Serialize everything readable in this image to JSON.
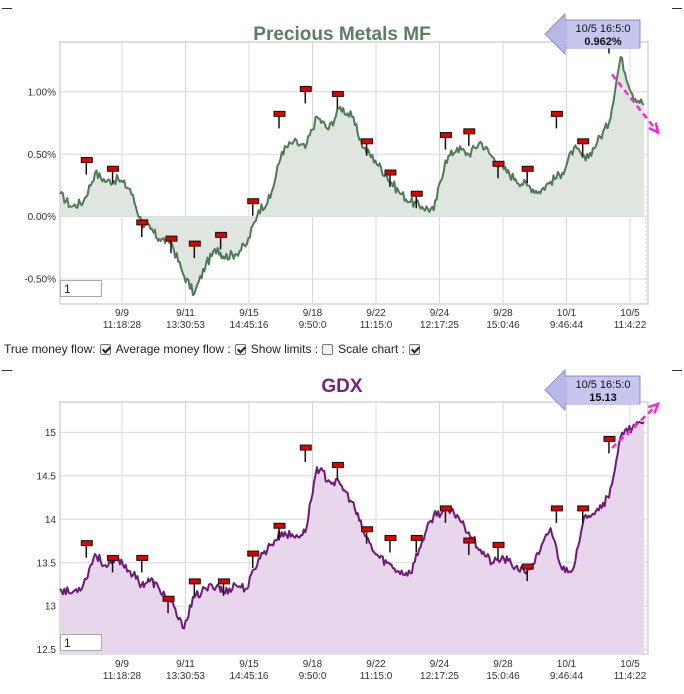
{
  "options": {
    "true_money_flow": "True money flow:",
    "average_money_flow": "Average money flow :",
    "show_limits": "Show limits :",
    "scale_chart": "Scale chart :",
    "true_money_flow_checked": true,
    "average_money_flow_checked": true,
    "show_limits_checked": false,
    "scale_chart_checked": true
  },
  "chart_data": [
    {
      "type": "area",
      "title": "Precious Metals MF",
      "title_color": "#5a7f5f",
      "line_color": "#4f7a55",
      "fill_color": "#dfe5df",
      "ylim": [
        -0.7,
        1.4
      ],
      "yticks": [
        -0.5,
        0.0,
        0.5,
        1.0
      ],
      "ytick_labels": [
        "-0.50%",
        "0.00%",
        "0.50%",
        "1.00%"
      ],
      "xtick_labels": [
        [
          "9/9",
          "11:18:28"
        ],
        [
          "9/11",
          "13:30:53"
        ],
        [
          "9/15",
          "14:45:16"
        ],
        [
          "9/18",
          "9:50:0"
        ],
        [
          "9/22",
          "11:15:0"
        ],
        [
          "9/24",
          "12:17:25"
        ],
        [
          "9/28",
          "15:0:46"
        ],
        [
          "10/1",
          "9:46:44"
        ],
        [
          "10/5",
          "11:4:22"
        ]
      ],
      "x": [
        0,
        2,
        4,
        6,
        8,
        10,
        12,
        14,
        15.5,
        17,
        19,
        21,
        23,
        25,
        27,
        28,
        30,
        32,
        34,
        36,
        38,
        40,
        42,
        44,
        46,
        48,
        50,
        52,
        54,
        56,
        58,
        60,
        62,
        64,
        66,
        68,
        70,
        72,
        74,
        76,
        78,
        80,
        82,
        84,
        86,
        88,
        90,
        92,
        94,
        96,
        98,
        100
      ],
      "values": [
        0.18,
        0.08,
        0.12,
        0.35,
        0.28,
        0.3,
        0.22,
        -0.05,
        -0.1,
        -0.18,
        -0.2,
        -0.45,
        -0.62,
        -0.38,
        -0.25,
        -0.32,
        -0.3,
        -0.22,
        0.05,
        0.15,
        0.52,
        0.6,
        0.55,
        0.8,
        0.7,
        0.88,
        0.8,
        0.55,
        0.45,
        0.32,
        0.2,
        0.12,
        0.08,
        0.05,
        0.45,
        0.55,
        0.5,
        0.6,
        0.48,
        0.38,
        0.3,
        0.25,
        0.2,
        0.28,
        0.35,
        0.55,
        0.45,
        0.6,
        0.75,
        1.28,
        0.98,
        0.9
      ],
      "markers": [
        {
          "x": 4.5,
          "value": 0.45
        },
        {
          "x": 9,
          "value": 0.38
        },
        {
          "x": 14,
          "value": -0.05
        },
        {
          "x": 19,
          "value": -0.18
        },
        {
          "x": 23,
          "value": -0.22
        },
        {
          "x": 27.5,
          "value": -0.15
        },
        {
          "x": 33,
          "value": 0.12
        },
        {
          "x": 37.5,
          "value": 0.82
        },
        {
          "x": 42,
          "value": 1.02
        },
        {
          "x": 47.5,
          "value": 0.98
        },
        {
          "x": 52.5,
          "value": 0.6
        },
        {
          "x": 56.5,
          "value": 0.35
        },
        {
          "x": 61,
          "value": 0.18
        },
        {
          "x": 66,
          "value": 0.65
        },
        {
          "x": 70,
          "value": 0.68
        },
        {
          "x": 75,
          "value": 0.42
        },
        {
          "x": 80,
          "value": 0.38
        },
        {
          "x": 85,
          "value": 0.82
        },
        {
          "x": 89.5,
          "value": 0.6
        },
        {
          "x": 94,
          "value": 1.42
        }
      ],
      "badge": {
        "time": "10/5 16:5:0",
        "value": "0.962%"
      },
      "input_value": "1"
    },
    {
      "type": "area",
      "title": "GDX",
      "title_color": "#7a1f7a",
      "line_color": "#6e1a77",
      "fill_color": "#e8d7ec",
      "ylim": [
        12.45,
        15.35
      ],
      "yticks": [
        12.5,
        13,
        13.5,
        14,
        14.5,
        15
      ],
      "ytick_labels": [
        "12.5",
        "13",
        "13.5",
        "14",
        "14.5",
        "15"
      ],
      "xtick_labels": [
        [
          "9/9",
          "11:18:28"
        ],
        [
          "9/11",
          "13:30:53"
        ],
        [
          "9/15",
          "14:45:16"
        ],
        [
          "9/18",
          "9:50:0"
        ],
        [
          "9/22",
          "11:15:0"
        ],
        [
          "9/24",
          "12:17:25"
        ],
        [
          "9/28",
          "15:0:46"
        ],
        [
          "10/1",
          "9:46:44"
        ],
        [
          "10/5",
          "11:4:22"
        ]
      ],
      "x": [
        0,
        2,
        4,
        6,
        8,
        10,
        12,
        14,
        15.5,
        17,
        19,
        21,
        23,
        25,
        27,
        28,
        30,
        32,
        34,
        36,
        38,
        40,
        42,
        44,
        46,
        48,
        50,
        52,
        54,
        56,
        58,
        60,
        62,
        64,
        66,
        68,
        70,
        72,
        74,
        76,
        78,
        80,
        82,
        84,
        86,
        88,
        90,
        92,
        94,
        96,
        98,
        100
      ],
      "values": [
        13.2,
        13.15,
        13.25,
        13.6,
        13.45,
        13.55,
        13.4,
        13.25,
        13.3,
        13.2,
        13.05,
        12.75,
        13.1,
        13.2,
        13.25,
        13.15,
        13.25,
        13.2,
        13.55,
        13.7,
        13.85,
        13.8,
        13.85,
        14.6,
        14.45,
        14.4,
        14.2,
        13.85,
        13.6,
        13.5,
        13.4,
        13.38,
        13.75,
        14.05,
        14.1,
        14.05,
        13.85,
        13.65,
        13.5,
        13.55,
        13.45,
        13.4,
        13.6,
        13.9,
        13.42,
        13.45,
        14.05,
        14.12,
        14.25,
        14.95,
        15.05,
        15.12
      ],
      "markers": [
        {
          "x": 4.5,
          "value": 13.72
        },
        {
          "x": 9,
          "value": 13.55
        },
        {
          "x": 14,
          "value": 13.55
        },
        {
          "x": 18.5,
          "value": 13.08
        },
        {
          "x": 23,
          "value": 13.28
        },
        {
          "x": 28,
          "value": 13.28
        },
        {
          "x": 33,
          "value": 13.6
        },
        {
          "x": 37.5,
          "value": 13.92
        },
        {
          "x": 42,
          "value": 14.82
        },
        {
          "x": 47.5,
          "value": 14.62
        },
        {
          "x": 52.5,
          "value": 13.88
        },
        {
          "x": 56.5,
          "value": 13.78
        },
        {
          "x": 61,
          "value": 13.78
        },
        {
          "x": 66,
          "value": 14.12
        },
        {
          "x": 70,
          "value": 13.75
        },
        {
          "x": 75,
          "value": 13.7
        },
        {
          "x": 80,
          "value": 13.45
        },
        {
          "x": 85,
          "value": 14.12
        },
        {
          "x": 89.5,
          "value": 14.12
        },
        {
          "x": 94,
          "value": 14.92
        }
      ],
      "badge": {
        "time": "10/5 16:5:0",
        "value": "15.13"
      },
      "input_value": "1"
    }
  ]
}
